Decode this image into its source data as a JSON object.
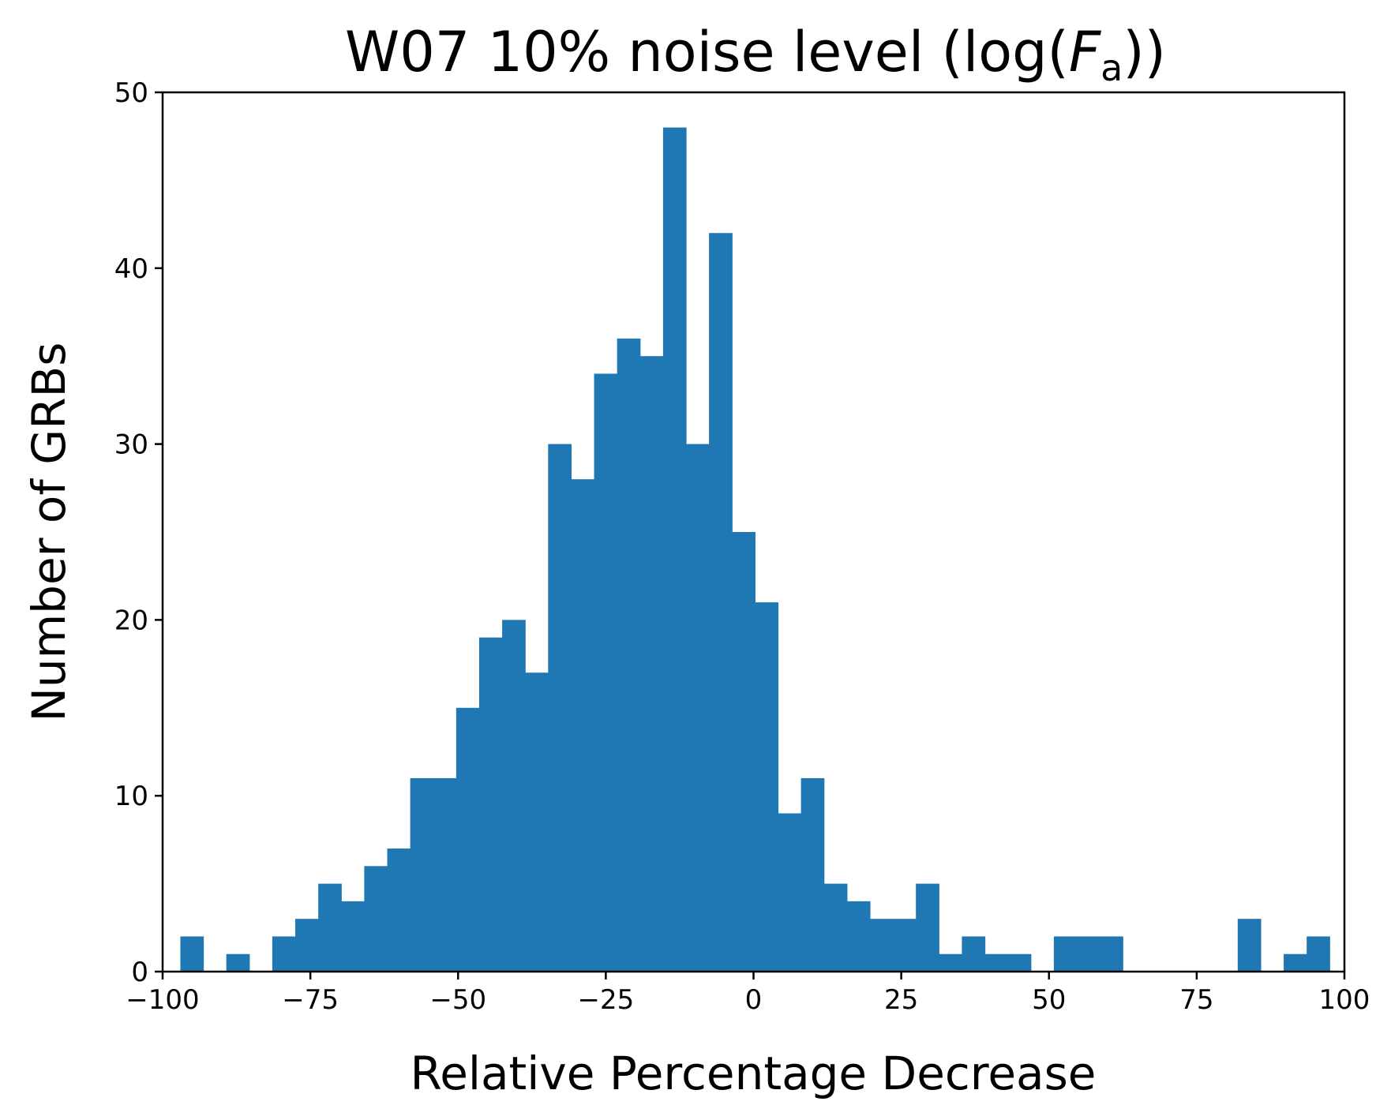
{
  "chart_data": {
    "type": "bar",
    "title_main": "W07 10% noise level (log(",
    "title_var": "F",
    "title_sub": "a",
    "title_end": "))",
    "xlabel": "Relative Percentage Decrease",
    "ylabel": "Number of GRBs",
    "xlim": [
      -100,
      100
    ],
    "ylim": [
      0,
      50
    ],
    "xticks": [
      -100,
      -75,
      -50,
      -25,
      0,
      25,
      50,
      75,
      100
    ],
    "xtick_labels": [
      "−100",
      "−75",
      "−50",
      "−25",
      "0",
      "25",
      "50",
      "75",
      "100"
    ],
    "yticks": [
      0,
      10,
      20,
      30,
      40,
      50
    ],
    "ytick_labels": [
      "0",
      "10",
      "20",
      "30",
      "40",
      "50"
    ],
    "bar_color": "#1f77b4",
    "bins": {
      "start": -97.0,
      "width": 3.89,
      "counts": [
        2,
        0,
        1,
        0,
        2,
        3,
        5,
        4,
        6,
        7,
        11,
        11,
        15,
        19,
        20,
        17,
        30,
        28,
        34,
        36,
        35,
        48,
        30,
        42,
        25,
        21,
        9,
        11,
        5,
        4,
        3,
        3,
        5,
        1,
        2,
        1,
        1,
        0,
        2,
        2,
        2,
        0,
        0,
        0,
        0,
        0,
        3,
        0,
        1,
        2
      ]
    }
  }
}
